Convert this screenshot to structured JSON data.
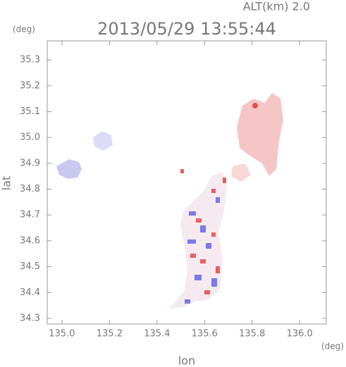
{
  "chart_data": {
    "type": "map",
    "title": "2013/05/29 13:55:44",
    "annotation": "ALT(km)  2.0",
    "y_unit": "(deg)",
    "x_unit": "(deg)",
    "xlabel": "lon",
    "ylabel": "lat",
    "xlim": [
      134.938,
      136.112
    ],
    "ylim": [
      34.278,
      35.374
    ],
    "xticks": [
      {
        "value": 135,
        "label": "135.0"
      },
      135.2,
      135.4,
      135.6,
      135.8,
      {
        "value": 136,
        "label": "136.0"
      }
    ],
    "yticks": [
      34.3,
      34.4,
      34.5,
      34.6,
      34.7,
      34.8,
      34.9,
      {
        "value": 35,
        "label": "35.0"
      },
      35.1,
      35.2,
      35.3
    ]
  }
}
